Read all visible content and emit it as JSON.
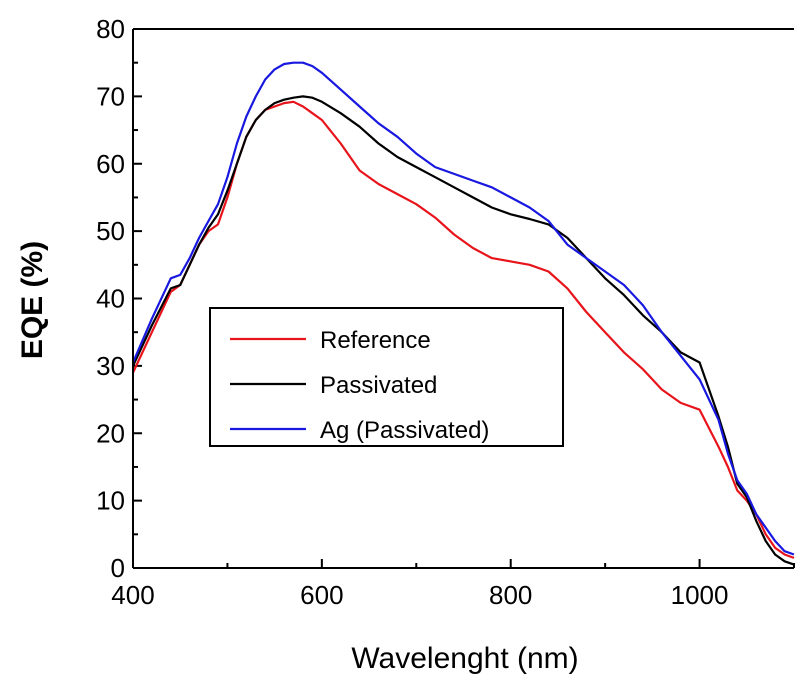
{
  "chart_data": {
    "type": "line",
    "title": "",
    "xlabel": "Wavelenght (nm)",
    "ylabel": "EQE (%)",
    "xlim": [
      400,
      1100
    ],
    "ylim": [
      0,
      80
    ],
    "xticks": [
      400,
      600,
      800,
      1000
    ],
    "yticks": [
      0,
      10,
      20,
      30,
      40,
      50,
      60,
      70,
      80
    ],
    "grid": false,
    "legend_position": "center-left",
    "series": [
      {
        "name": "Reference",
        "color": "#e8141b",
        "x": [
          400,
          420,
          440,
          450,
          460,
          470,
          480,
          490,
          500,
          510,
          520,
          530,
          540,
          550,
          560,
          570,
          580,
          590,
          600,
          620,
          640,
          660,
          680,
          700,
          720,
          740,
          760,
          780,
          800,
          820,
          840,
          860,
          880,
          900,
          920,
          940,
          960,
          980,
          1000,
          1020,
          1030,
          1040,
          1050,
          1060,
          1070,
          1080,
          1090,
          1100
        ],
        "y": [
          29,
          35,
          41,
          42,
          45,
          48,
          50,
          51,
          55,
          60,
          64,
          66.5,
          68,
          68.5,
          69,
          69.2,
          68.5,
          67.5,
          66.5,
          63,
          59,
          57,
          55.5,
          54,
          52,
          49.5,
          47.5,
          46,
          45.5,
          45,
          44,
          41.5,
          38,
          35,
          32,
          29.5,
          26.5,
          24.5,
          23.5,
          18,
          15,
          11.5,
          10,
          8,
          5,
          3,
          2,
          1.5
        ]
      },
      {
        "name": "Passivated",
        "color": "#000000",
        "x": [
          400,
          420,
          440,
          450,
          460,
          470,
          480,
          490,
          500,
          510,
          520,
          530,
          540,
          550,
          560,
          570,
          580,
          590,
          600,
          620,
          640,
          660,
          680,
          700,
          720,
          740,
          760,
          780,
          800,
          820,
          840,
          860,
          880,
          900,
          920,
          940,
          960,
          980,
          1000,
          1020,
          1030,
          1040,
          1050,
          1060,
          1070,
          1080,
          1090,
          1100
        ],
        "y": [
          30,
          36,
          41.5,
          42,
          45,
          48,
          50.5,
          52.5,
          56,
          60,
          64,
          66.5,
          68,
          69,
          69.5,
          69.8,
          70,
          69.8,
          69.2,
          67.5,
          65.5,
          63,
          61,
          59.5,
          58,
          56.5,
          55,
          53.5,
          52.5,
          51.8,
          51,
          49,
          46,
          43,
          40.5,
          37.5,
          35,
          32,
          30.5,
          22.5,
          18,
          12.5,
          10.5,
          7,
          4,
          2,
          1,
          0.5
        ]
      },
      {
        "name": "Ag (Passivated)",
        "color": "#1818e0",
        "x": [
          400,
          420,
          440,
          450,
          460,
          470,
          480,
          490,
          500,
          510,
          520,
          530,
          540,
          550,
          560,
          570,
          580,
          590,
          600,
          620,
          640,
          660,
          680,
          700,
          720,
          740,
          760,
          780,
          800,
          820,
          840,
          860,
          880,
          900,
          920,
          940,
          960,
          980,
          1000,
          1020,
          1030,
          1040,
          1050,
          1060,
          1070,
          1080,
          1090,
          1100
        ],
        "y": [
          30.5,
          37,
          43,
          43.5,
          46,
          49,
          51.5,
          54,
          58,
          63,
          67,
          70,
          72.5,
          74,
          74.8,
          75,
          75,
          74.5,
          73.5,
          71,
          68.5,
          66,
          64,
          61.5,
          59.5,
          58.5,
          57.5,
          56.5,
          55,
          53.5,
          51.5,
          48,
          46,
          44,
          42,
          39,
          35,
          31.5,
          28,
          22,
          17,
          13,
          11,
          8,
          6,
          4,
          2.5,
          2
        ]
      }
    ]
  }
}
